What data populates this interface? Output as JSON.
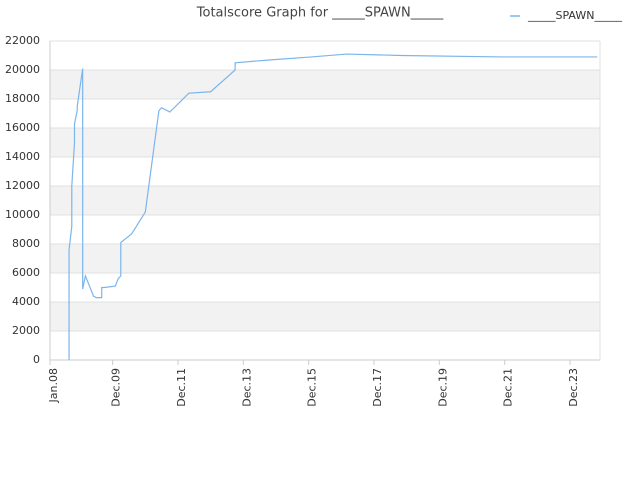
{
  "chart_data": {
    "type": "line",
    "title": "Totalscore Graph for _____SPAWN_____",
    "x": [
      "2008-08",
      "2008-08",
      "2008-09",
      "2008-09",
      "2008-09",
      "2008-10",
      "2008-10",
      "2008-11",
      "2008-11",
      "2009-01",
      "2009-01",
      "2009-02",
      "2009-05",
      "2009-06",
      "2009-08",
      "2009-08",
      "2009-09",
      "2010-01",
      "2010-02",
      "2010-03",
      "2010-03",
      "2010-03",
      "2010-07",
      "2010-12",
      "2011-05",
      "2011-06",
      "2011-09",
      "2012-04",
      "2012-12",
      "2013-09",
      "2013-09",
      "2014-10",
      "2016-01",
      "2017-02",
      "2018-10",
      "2021-11",
      "2024-10"
    ],
    "series": [
      {
        "name": "_____SPAWN_____",
        "color": "#7cb5ec",
        "values": [
          0,
          7600,
          9200,
          10700,
          12000,
          15000,
          16300,
          17200,
          17500,
          20100,
          4900,
          5800,
          4400,
          4300,
          4300,
          5000,
          5000,
          5100,
          5600,
          5800,
          6700,
          8100,
          8700,
          10200,
          17200,
          17400,
          17100,
          18400,
          18500,
          20000,
          20500,
          20700,
          20900,
          21100,
          21000,
          20900,
          20900
        ]
      }
    ],
    "xlim": [
      "2008-01",
      "2024-11"
    ],
    "xticks": [
      {
        "value": "2008-01",
        "label": "Jan.08"
      },
      {
        "value": "2009-12",
        "label": "Dec.09"
      },
      {
        "value": "2011-12",
        "label": "Dec.11"
      },
      {
        "value": "2013-12",
        "label": "Dec.13"
      },
      {
        "value": "2015-12",
        "label": "Dec.15"
      },
      {
        "value": "2017-12",
        "label": "Dec.17"
      },
      {
        "value": "2019-12",
        "label": "Dec.19"
      },
      {
        "value": "2021-12",
        "label": "Dec.21"
      },
      {
        "value": "2023-12",
        "label": "Dec.23"
      }
    ],
    "ylim": [
      0,
      22000
    ],
    "yticks": [
      0,
      2000,
      4000,
      6000,
      8000,
      10000,
      12000,
      14000,
      16000,
      18000,
      20000,
      22000
    ],
    "grid": true
  }
}
